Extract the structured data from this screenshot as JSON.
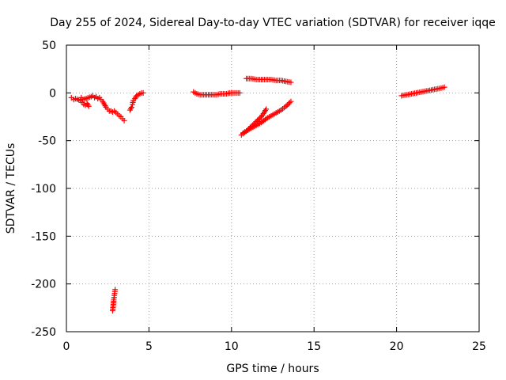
{
  "chart_data": {
    "type": "scatter",
    "title": "Day 255 of 2024, Sidereal Day-to-day VTEC variation (SDTVAR) for receiver iqqe",
    "xlabel": "GPS time / hours",
    "ylabel": "SDTVAR / TECUs",
    "xlim": [
      0,
      25
    ],
    "ylim": [
      -250,
      50
    ],
    "xticks": [
      0,
      5,
      10,
      15,
      20,
      25
    ],
    "yticks": [
      -250,
      -200,
      -150,
      -100,
      -50,
      0,
      50
    ],
    "grid": true,
    "legend": "none",
    "marker": "plus",
    "color": "#ff0000",
    "series": [
      {
        "values": [
          [
            0.3,
            -5
          ],
          [
            0.45,
            -7
          ],
          [
            0.55,
            -6
          ],
          [
            0.85,
            -8
          ],
          [
            0.95,
            -10
          ],
          [
            1.05,
            -12
          ],
          [
            1.15,
            -13
          ],
          [
            1.25,
            -11
          ],
          [
            1.35,
            -14
          ],
          [
            0.9,
            -5
          ],
          [
            1.0,
            -7
          ],
          [
            1.5,
            -4
          ],
          [
            1.6,
            -3
          ],
          [
            1.7,
            -5
          ],
          [
            1.8,
            -4
          ],
          [
            1.9,
            -6
          ],
          [
            2.0,
            -5
          ],
          [
            2.1,
            -7
          ],
          [
            2.2,
            -9
          ],
          [
            2.3,
            -12
          ],
          [
            2.4,
            -15
          ],
          [
            2.5,
            -17
          ],
          [
            2.6,
            -19
          ],
          [
            2.7,
            -19
          ],
          [
            2.8,
            -20
          ],
          [
            2.9,
            -19
          ],
          [
            3.1,
            -22
          ],
          [
            3.2,
            -24
          ],
          [
            3.3,
            -25
          ],
          [
            3.4,
            -27
          ],
          [
            3.5,
            -29
          ],
          [
            3.85,
            -18
          ],
          [
            3.95,
            -15
          ],
          [
            4.0,
            -12
          ],
          [
            4.05,
            -8
          ],
          [
            4.15,
            -6
          ],
          [
            4.25,
            -3
          ],
          [
            4.35,
            -2
          ],
          [
            4.45,
            -1
          ],
          [
            4.55,
            0
          ],
          [
            4.65,
            0
          ],
          [
            2.8,
            -228
          ],
          [
            2.83,
            -223
          ],
          [
            2.86,
            -218
          ],
          [
            2.89,
            -214
          ],
          [
            2.92,
            -210
          ],
          [
            2.95,
            -206
          ],
          [
            7.7,
            1
          ],
          [
            7.9,
            -1
          ],
          [
            8.1,
            -2
          ],
          [
            8.3,
            -2
          ],
          [
            8.5,
            -2
          ],
          [
            8.7,
            -2
          ],
          [
            8.9,
            -2
          ],
          [
            9.1,
            -2
          ],
          [
            9.3,
            -1
          ],
          [
            9.5,
            -1
          ],
          [
            9.7,
            -1
          ],
          [
            9.9,
            0
          ],
          [
            10.1,
            0
          ],
          [
            10.3,
            0
          ],
          [
            10.5,
            0
          ],
          [
            10.9,
            15
          ],
          [
            11.2,
            15
          ],
          [
            11.5,
            14
          ],
          [
            11.8,
            14
          ],
          [
            12.1,
            14
          ],
          [
            12.4,
            14
          ],
          [
            12.7,
            13
          ],
          [
            13.0,
            13
          ],
          [
            13.3,
            12
          ],
          [
            13.6,
            11
          ],
          [
            10.6,
            -44
          ],
          [
            10.9,
            -40
          ],
          [
            11.2,
            -35
          ],
          [
            11.5,
            -30
          ],
          [
            11.8,
            -25
          ],
          [
            12.0,
            -20
          ],
          [
            12.1,
            -17
          ],
          [
            10.7,
            -42
          ],
          [
            11.0,
            -39
          ],
          [
            11.4,
            -35
          ],
          [
            11.8,
            -31
          ],
          [
            12.2,
            -26
          ],
          [
            12.6,
            -22
          ],
          [
            13.0,
            -18
          ],
          [
            13.3,
            -14
          ],
          [
            13.6,
            -9
          ],
          [
            20.3,
            -3
          ],
          [
            20.6,
            -2
          ],
          [
            20.9,
            -1
          ],
          [
            21.2,
            0
          ],
          [
            21.5,
            1
          ],
          [
            21.8,
            2
          ],
          [
            22.1,
            3
          ],
          [
            22.4,
            4
          ],
          [
            22.7,
            5
          ],
          [
            22.9,
            6
          ]
        ]
      }
    ]
  }
}
